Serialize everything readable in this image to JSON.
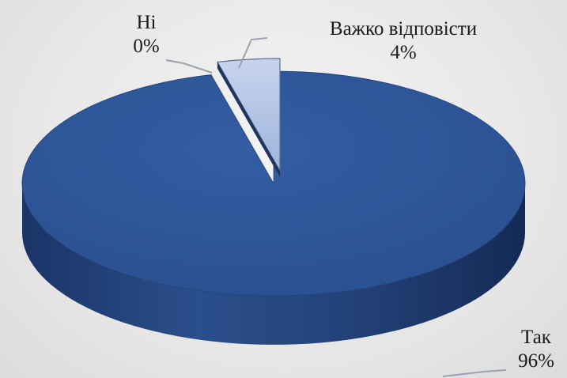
{
  "chart_data": {
    "type": "pie",
    "style": "3d",
    "slices": [
      {
        "label": "Так",
        "value": 96,
        "value_label": "96%",
        "color": "#2e5597"
      },
      {
        "label": "Ні",
        "value": 0,
        "value_label": "0%",
        "color": "#6f8fc7"
      },
      {
        "label": "Важко відповісти",
        "value": 4,
        "value_label": "4%",
        "color": "#a9bde3"
      }
    ],
    "title": "",
    "legend": "none",
    "data_labels": "category-and-percent"
  }
}
